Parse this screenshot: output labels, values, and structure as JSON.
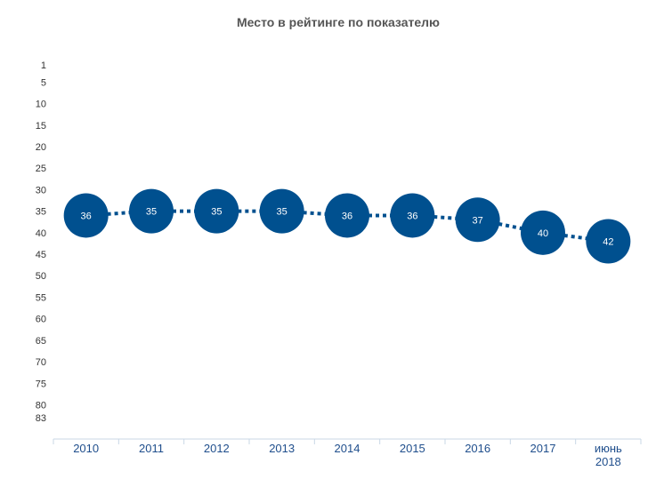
{
  "chart_data": {
    "type": "line",
    "title": "Место в рейтинге по показателю",
    "categories": [
      "2010",
      "2011",
      "2012",
      "2013",
      "2014",
      "2015",
      "2016",
      "2017",
      "июнь 2018"
    ],
    "values": [
      36,
      35,
      35,
      35,
      36,
      36,
      37,
      40,
      42
    ],
    "ylim": [
      1,
      83
    ],
    "y_inverted": true,
    "yticks": [
      1,
      5,
      10,
      15,
      20,
      25,
      30,
      35,
      40,
      45,
      50,
      55,
      60,
      65,
      70,
      75,
      80,
      83
    ],
    "grid": false,
    "line_style": "dotted",
    "marker": "circle",
    "colors": {
      "series": "#00508f",
      "marker_label": "#ffffff",
      "x_tick_text": "#1f4e8c",
      "axis_line": "#c9d7e6"
    }
  }
}
